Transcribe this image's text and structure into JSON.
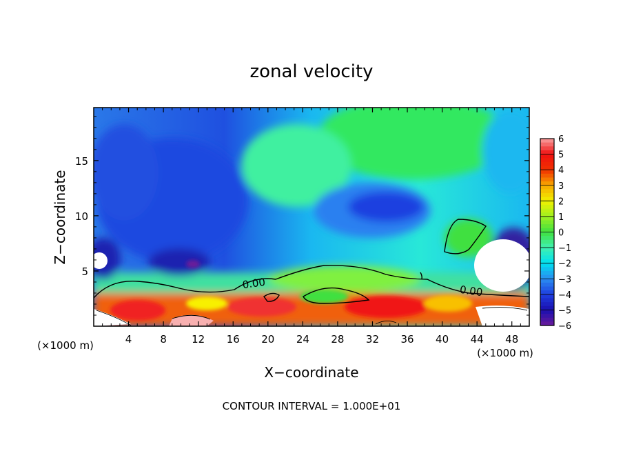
{
  "chart_data": {
    "type": "heatmap",
    "title": "zonal velocity",
    "xlabel": "X−coordinate",
    "ylabel": "Z−coordinate",
    "x_unit": "(×1000 m)",
    "y_unit": "(×1000 m)",
    "footer": "CONTOUR INTERVAL = 1.000E+01",
    "xlim": [
      0,
      50
    ],
    "ylim": [
      0,
      19.8
    ],
    "x_ticks": [
      "4",
      "8",
      "12",
      "16",
      "20",
      "24",
      "28",
      "32",
      "36",
      "40",
      "44",
      "48"
    ],
    "y_ticks": [
      "5",
      "10",
      "15"
    ],
    "contour_labels": [
      "0.00",
      "0.00"
    ],
    "colorbar": {
      "range": [
        -6,
        6
      ],
      "tick_labels": [
        "6",
        "5",
        "4",
        "3",
        "2",
        "1",
        "0",
        "−1",
        "−2",
        "−3",
        "−4",
        "−5",
        "−6"
      ],
      "stops": [
        [
          -6,
          "#6a1a9a"
        ],
        [
          -5,
          "#1a10b0"
        ],
        [
          -4,
          "#1f3fe0"
        ],
        [
          -3,
          "#2a8ef0"
        ],
        [
          -2,
          "#00e0f0"
        ],
        [
          -1,
          "#40f0b0"
        ],
        [
          0,
          "#40e040"
        ],
        [
          1,
          "#a0f020"
        ],
        [
          2,
          "#f0f000"
        ],
        [
          3,
          "#f8a800"
        ],
        [
          4,
          "#f03000"
        ],
        [
          5,
          "#f01010"
        ],
        [
          6,
          "#f8a0a0"
        ]
      ]
    },
    "grid": false,
    "legend": "colorbar on right"
  }
}
